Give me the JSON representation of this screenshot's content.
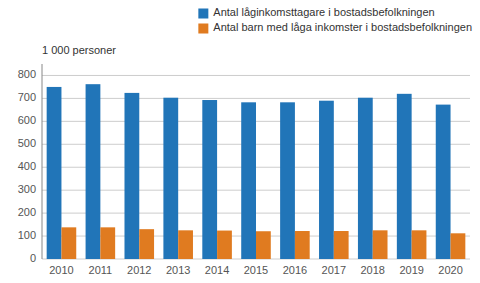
{
  "chart_data": {
    "type": "bar",
    "y_label": "1 000 personer",
    "categories": [
      "2010",
      "2011",
      "2012",
      "2013",
      "2014",
      "2015",
      "2016",
      "2017",
      "2018",
      "2019",
      "2020"
    ],
    "series": [
      {
        "name": "Antal låginkomsttagare i bostadsbefolkningen",
        "color": "#2175b8",
        "values": [
          750,
          762,
          724,
          703,
          693,
          683,
          683,
          690,
          703,
          720,
          673
        ]
      },
      {
        "name": "Antal barn med låga inkomster i bostadsbefolkningen",
        "color": "#e07b20",
        "values": [
          138,
          138,
          130,
          125,
          124,
          121,
          122,
          122,
          125,
          125,
          112
        ]
      }
    ],
    "ylim": [
      0,
      850
    ],
    "yticks": [
      0,
      100,
      200,
      300,
      400,
      500,
      600,
      700,
      800
    ],
    "grid": true,
    "legend": "top-right"
  }
}
